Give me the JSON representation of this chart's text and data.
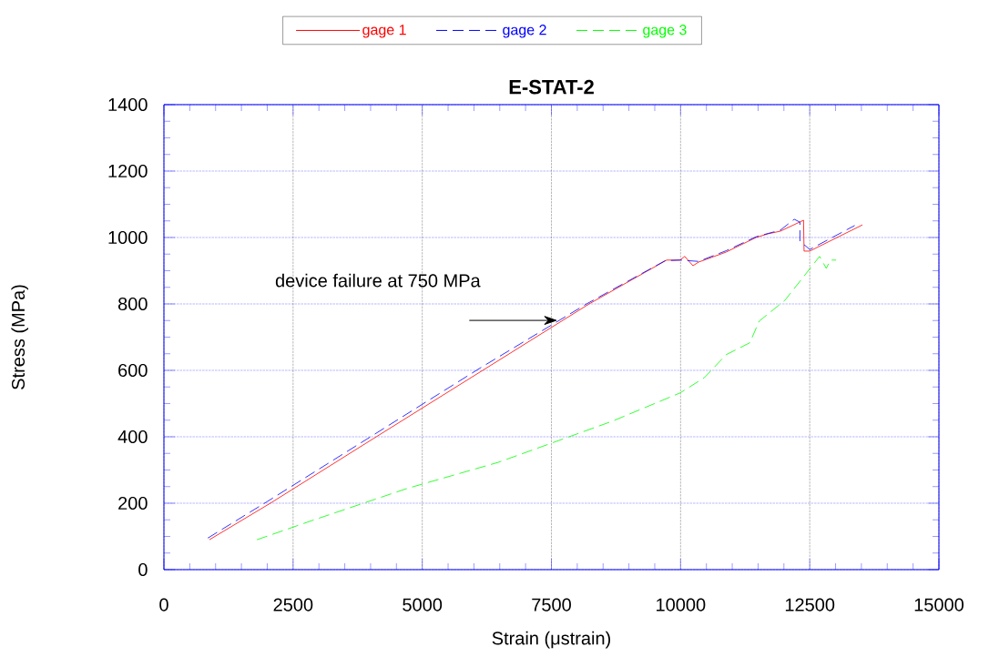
{
  "chart_data": {
    "type": "line",
    "title": "E-STAT-2",
    "xlabel": "Strain  (μstrain)",
    "ylabel": "Stress  (MPa)",
    "xlim": [
      0,
      15000
    ],
    "xticks": [
      0,
      2500,
      5000,
      7500,
      10000,
      12500,
      15000
    ],
    "ylim": [
      0,
      1400
    ],
    "yticks": [
      0,
      200,
      400,
      600,
      800,
      1000,
      1200,
      1400
    ],
    "grid": true,
    "legend": "top",
    "annotations": [
      "device failure at 750 MPa"
    ],
    "series": [
      {
        "name": "gage 1",
        "color": "#ff0000",
        "line_style": "solid",
        "x": [
          880,
          2060,
          4110,
          6170,
          8230,
          9730,
          9990,
          10080,
          10240,
          10350,
          10880,
          11460,
          11690,
          11930,
          12380,
          12390,
          12500,
          13520
        ],
        "values": [
          90,
          200,
          400,
          600,
          800,
          932,
          932,
          943,
          915,
          926,
          956,
          1000,
          1011,
          1019,
          1052,
          959,
          959,
          1038
        ]
      },
      {
        "name": "gage 2",
        "color": "#0000ff",
        "line_style": "dashed",
        "x": [
          850,
          2000,
          4050,
          6100,
          8180,
          9700,
          9990,
          10350,
          10880,
          11460,
          11690,
          11930,
          12200,
          12310,
          12310,
          12500,
          13370
        ],
        "values": [
          95,
          205,
          405,
          605,
          800,
          930,
          932,
          928,
          960,
          1002,
          1012,
          1022,
          1055,
          1046,
          989,
          964,
          1036
        ]
      },
      {
        "name": "gage 3",
        "color": "#00ff00",
        "line_style": "dashed",
        "x": [
          1800,
          2870,
          4700,
          6470,
          8680,
          9990,
          10460,
          10880,
          11340,
          11520,
          12020,
          12690,
          12820,
          12900,
          13010
        ],
        "values": [
          90,
          148,
          244,
          323,
          447,
          532,
          578,
          647,
          683,
          748,
          811,
          943,
          907,
          932,
          932
        ]
      }
    ]
  }
}
